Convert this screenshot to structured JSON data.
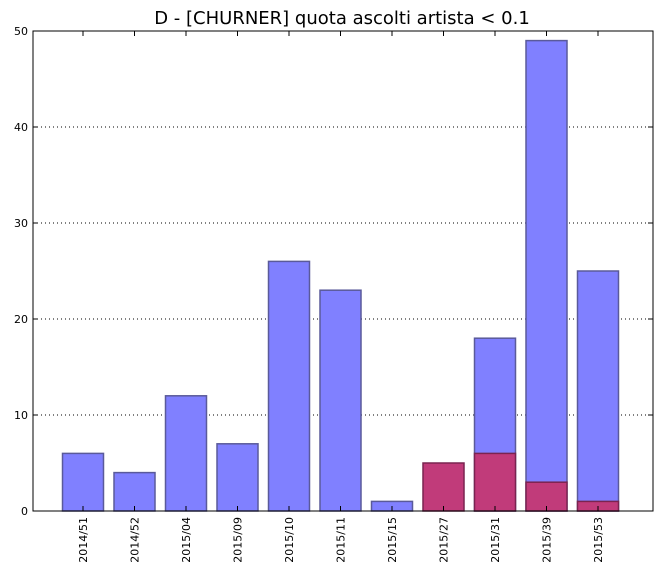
{
  "chart_data": {
    "type": "bar",
    "title": "D - [CHURNER] quota ascolti artista < 0.1",
    "xlabel": "",
    "ylabel": "",
    "categories": [
      "2014/51",
      "2014/52",
      "2015/04",
      "2015/09",
      "2015/10",
      "2015/11",
      "2015/15",
      "2015/27",
      "2015/31",
      "2015/39",
      "2015/53"
    ],
    "series": [
      {
        "values": [
          6,
          4,
          12,
          7,
          26,
          23,
          1,
          0,
          18,
          49,
          25
        ],
        "color": "#8080ff"
      },
      {
        "values": [
          0,
          0,
          0,
          0,
          0,
          0,
          0,
          5,
          6,
          3,
          1
        ],
        "color": "#c13b7a"
      }
    ],
    "ylim": [
      0,
      50
    ],
    "yticks": [
      0,
      10,
      20,
      30,
      40,
      50
    ],
    "grid": "horizontal dotted",
    "legend": "none"
  }
}
